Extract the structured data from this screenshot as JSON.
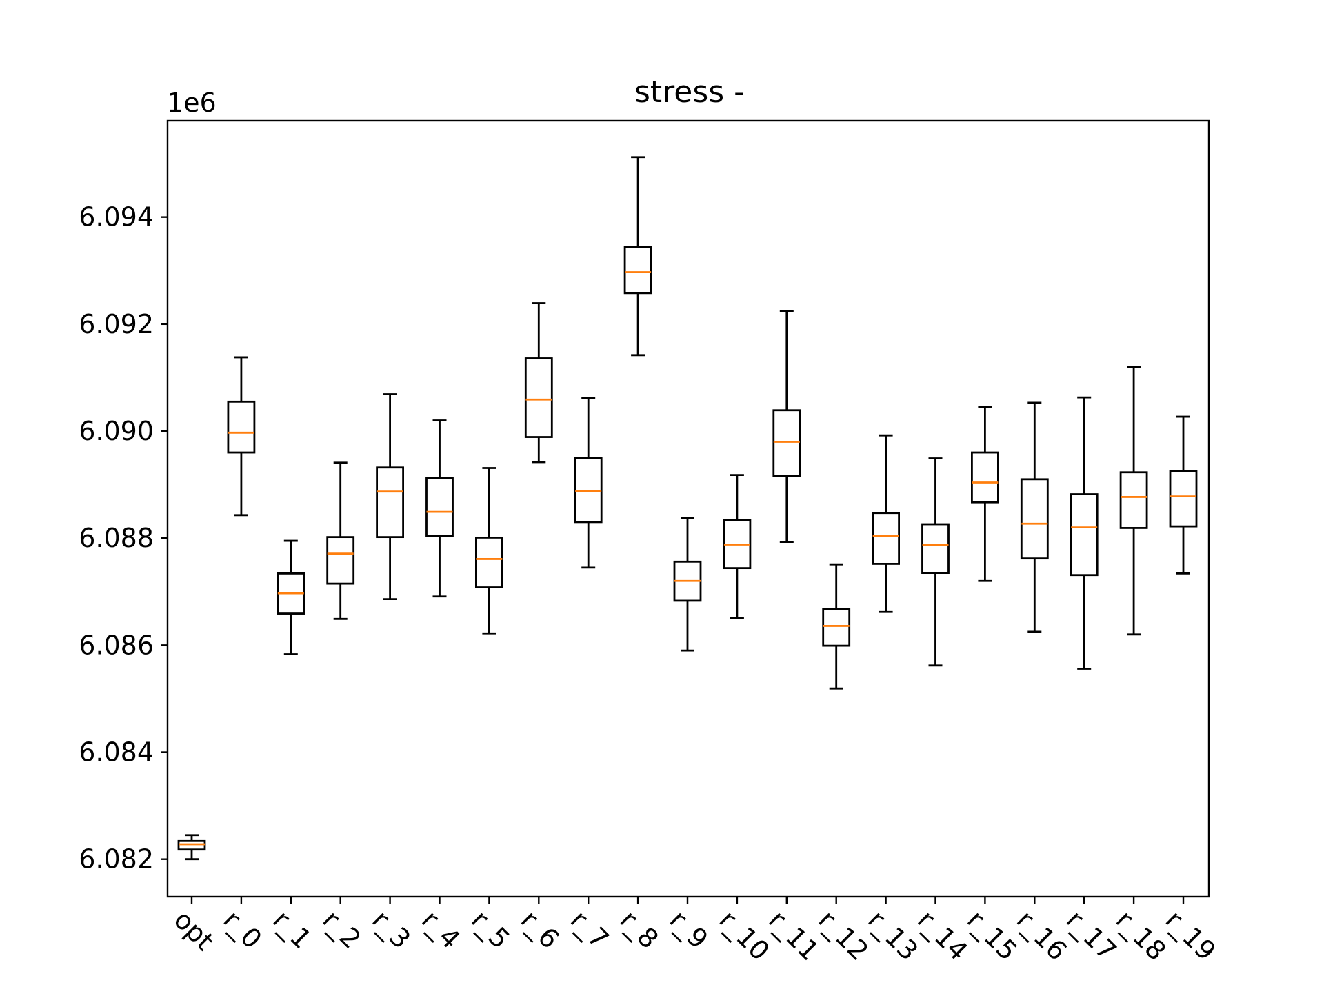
{
  "chart_data": {
    "type": "box",
    "title": "stress -",
    "xlabel": "",
    "ylabel": "",
    "offset_label": "1e6",
    "ylim": [
      6.0813,
      6.0958
    ],
    "yticks": [
      6.082,
      6.084,
      6.086,
      6.088,
      6.09,
      6.092,
      6.094
    ],
    "ytick_labels": [
      "6.082",
      "6.084",
      "6.086",
      "6.088",
      "6.090",
      "6.092",
      "6.094"
    ],
    "grid": false,
    "colors": {
      "box": "#000000",
      "median": "#ff7f0e"
    },
    "categories": [
      "opt",
      "r_0",
      "r_1",
      "r_2",
      "r_3",
      "r_4",
      "r_5",
      "r_6",
      "r_7",
      "r_8",
      "r_9",
      "r_10",
      "r_11",
      "r_12",
      "r_13",
      "r_14",
      "r_15",
      "r_16",
      "r_17",
      "r_18",
      "r_19"
    ],
    "boxes": [
      {
        "whislo": 6.082,
        "q1": 6.08218,
        "med": 6.08228,
        "q3": 6.08234,
        "whishi": 6.08245
      },
      {
        "whislo": 6.08843,
        "q1": 6.0896,
        "med": 6.08997,
        "q3": 6.09055,
        "whishi": 6.09138
      },
      {
        "whislo": 6.08583,
        "q1": 6.08659,
        "med": 6.08697,
        "q3": 6.08734,
        "whishi": 6.08795
      },
      {
        "whislo": 6.08649,
        "q1": 6.08715,
        "med": 6.08771,
        "q3": 6.08802,
        "whishi": 6.08941
      },
      {
        "whislo": 6.08686,
        "q1": 6.08802,
        "med": 6.08887,
        "q3": 6.08932,
        "whishi": 6.09069
      },
      {
        "whislo": 6.08691,
        "q1": 6.08804,
        "med": 6.08849,
        "q3": 6.08912,
        "whishi": 6.0902
      },
      {
        "whislo": 6.08622,
        "q1": 6.08708,
        "med": 6.08761,
        "q3": 6.08801,
        "whishi": 6.08931
      },
      {
        "whislo": 6.08942,
        "q1": 6.08989,
        "med": 6.09059,
        "q3": 6.09136,
        "whishi": 6.09239
      },
      {
        "whislo": 6.08745,
        "q1": 6.0883,
        "med": 6.08888,
        "q3": 6.0895,
        "whishi": 6.09062
      },
      {
        "whislo": 6.09142,
        "q1": 6.09258,
        "med": 6.09297,
        "q3": 6.09344,
        "whishi": 6.09512
      },
      {
        "whislo": 6.0859,
        "q1": 6.08683,
        "med": 6.0872,
        "q3": 6.08756,
        "whishi": 6.08838
      },
      {
        "whislo": 6.08651,
        "q1": 6.08744,
        "med": 6.08788,
        "q3": 6.08834,
        "whishi": 6.08918
      },
      {
        "whislo": 6.08793,
        "q1": 6.08916,
        "med": 6.0898,
        "q3": 6.09039,
        "whishi": 6.09224
      },
      {
        "whislo": 6.08519,
        "q1": 6.08599,
        "med": 6.08636,
        "q3": 6.08667,
        "whishi": 6.08751
      },
      {
        "whislo": 6.08662,
        "q1": 6.08752,
        "med": 6.08804,
        "q3": 6.08847,
        "whishi": 6.08992
      },
      {
        "whislo": 6.08562,
        "q1": 6.08735,
        "med": 6.08787,
        "q3": 6.08826,
        "whishi": 6.08949
      },
      {
        "whislo": 6.0872,
        "q1": 6.08867,
        "med": 6.08904,
        "q3": 6.0896,
        "whishi": 6.09045
      },
      {
        "whislo": 6.08625,
        "q1": 6.08762,
        "med": 6.08827,
        "q3": 6.0891,
        "whishi": 6.09053
      },
      {
        "whislo": 6.08556,
        "q1": 6.08731,
        "med": 6.0882,
        "q3": 6.08882,
        "whishi": 6.09063
      },
      {
        "whislo": 6.0862,
        "q1": 6.08819,
        "med": 6.08877,
        "q3": 6.08923,
        "whishi": 6.0912
      },
      {
        "whislo": 6.08734,
        "q1": 6.08822,
        "med": 6.08878,
        "q3": 6.08925,
        "whishi": 6.09027
      }
    ]
  }
}
